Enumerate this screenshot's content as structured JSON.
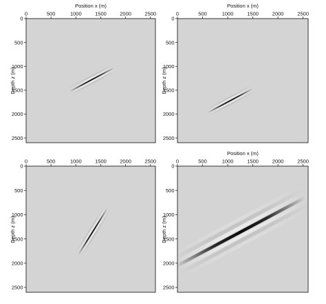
{
  "chart_data": [
    {
      "type": "heatmap",
      "xlabel": "Position x (m)",
      "ylabel": "Depth z (m)",
      "xlim": [
        0,
        2600
      ],
      "ylim": [
        0,
        2600
      ],
      "y_inverted": true,
      "xticks": [
        0,
        500,
        1000,
        1500,
        2000,
        2500
      ],
      "yticks": [
        0,
        500,
        1000,
        1500,
        2000,
        2500
      ],
      "background_color": "#d4d4d4",
      "event": {
        "center_x": 1320,
        "center_z": 1280,
        "length_m": 1000,
        "halfwidth_m": 10,
        "angle_deg": -28,
        "sidelobe": 2
      }
    },
    {
      "type": "heatmap",
      "xlabel": "Position x (m)",
      "ylabel": "Depth z (m)",
      "xlim": [
        0,
        2600
      ],
      "ylim": [
        0,
        2600
      ],
      "y_inverted": true,
      "xticks": [
        0,
        500,
        1000,
        1500,
        2000,
        2500
      ],
      "yticks": [
        0,
        500,
        1000,
        1500,
        2000,
        2500
      ],
      "background_color": "#d4d4d4",
      "event": {
        "center_x": 1050,
        "center_z": 1720,
        "length_m": 1000,
        "halfwidth_m": 10,
        "angle_deg": -28,
        "sidelobe": 2
      }
    },
    {
      "type": "heatmap",
      "xlabel": "",
      "ylabel": "Depth z (m)",
      "xlim": [
        0,
        2600
      ],
      "ylim": [
        0,
        2600
      ],
      "y_inverted": true,
      "xticks": [
        0,
        500,
        1000,
        1500,
        2000,
        2500
      ],
      "yticks": [
        0,
        500,
        1000,
        1500,
        2000,
        2500
      ],
      "background_color": "#d4d4d4",
      "event": {
        "center_x": 1340,
        "center_z": 1350,
        "length_m": 1100,
        "halfwidth_m": 10,
        "angle_deg": -58,
        "sidelobe": 2
      }
    },
    {
      "type": "heatmap",
      "xlabel": "Position x (m)",
      "ylabel": "Depth z (m)",
      "xlim": [
        0,
        2600
      ],
      "ylim": [
        0,
        2600
      ],
      "y_inverted": true,
      "xticks": [
        0,
        500,
        1000,
        1500,
        2000,
        2500
      ],
      "yticks": [
        0,
        500,
        1000,
        1500,
        2000,
        2500
      ],
      "background_color": "#d4d4d4",
      "event": {
        "center_x": 1250,
        "center_z": 1360,
        "length_m": 2900,
        "halfwidth_m": 30,
        "angle_deg": -28,
        "sidelobe": 3
      }
    }
  ]
}
